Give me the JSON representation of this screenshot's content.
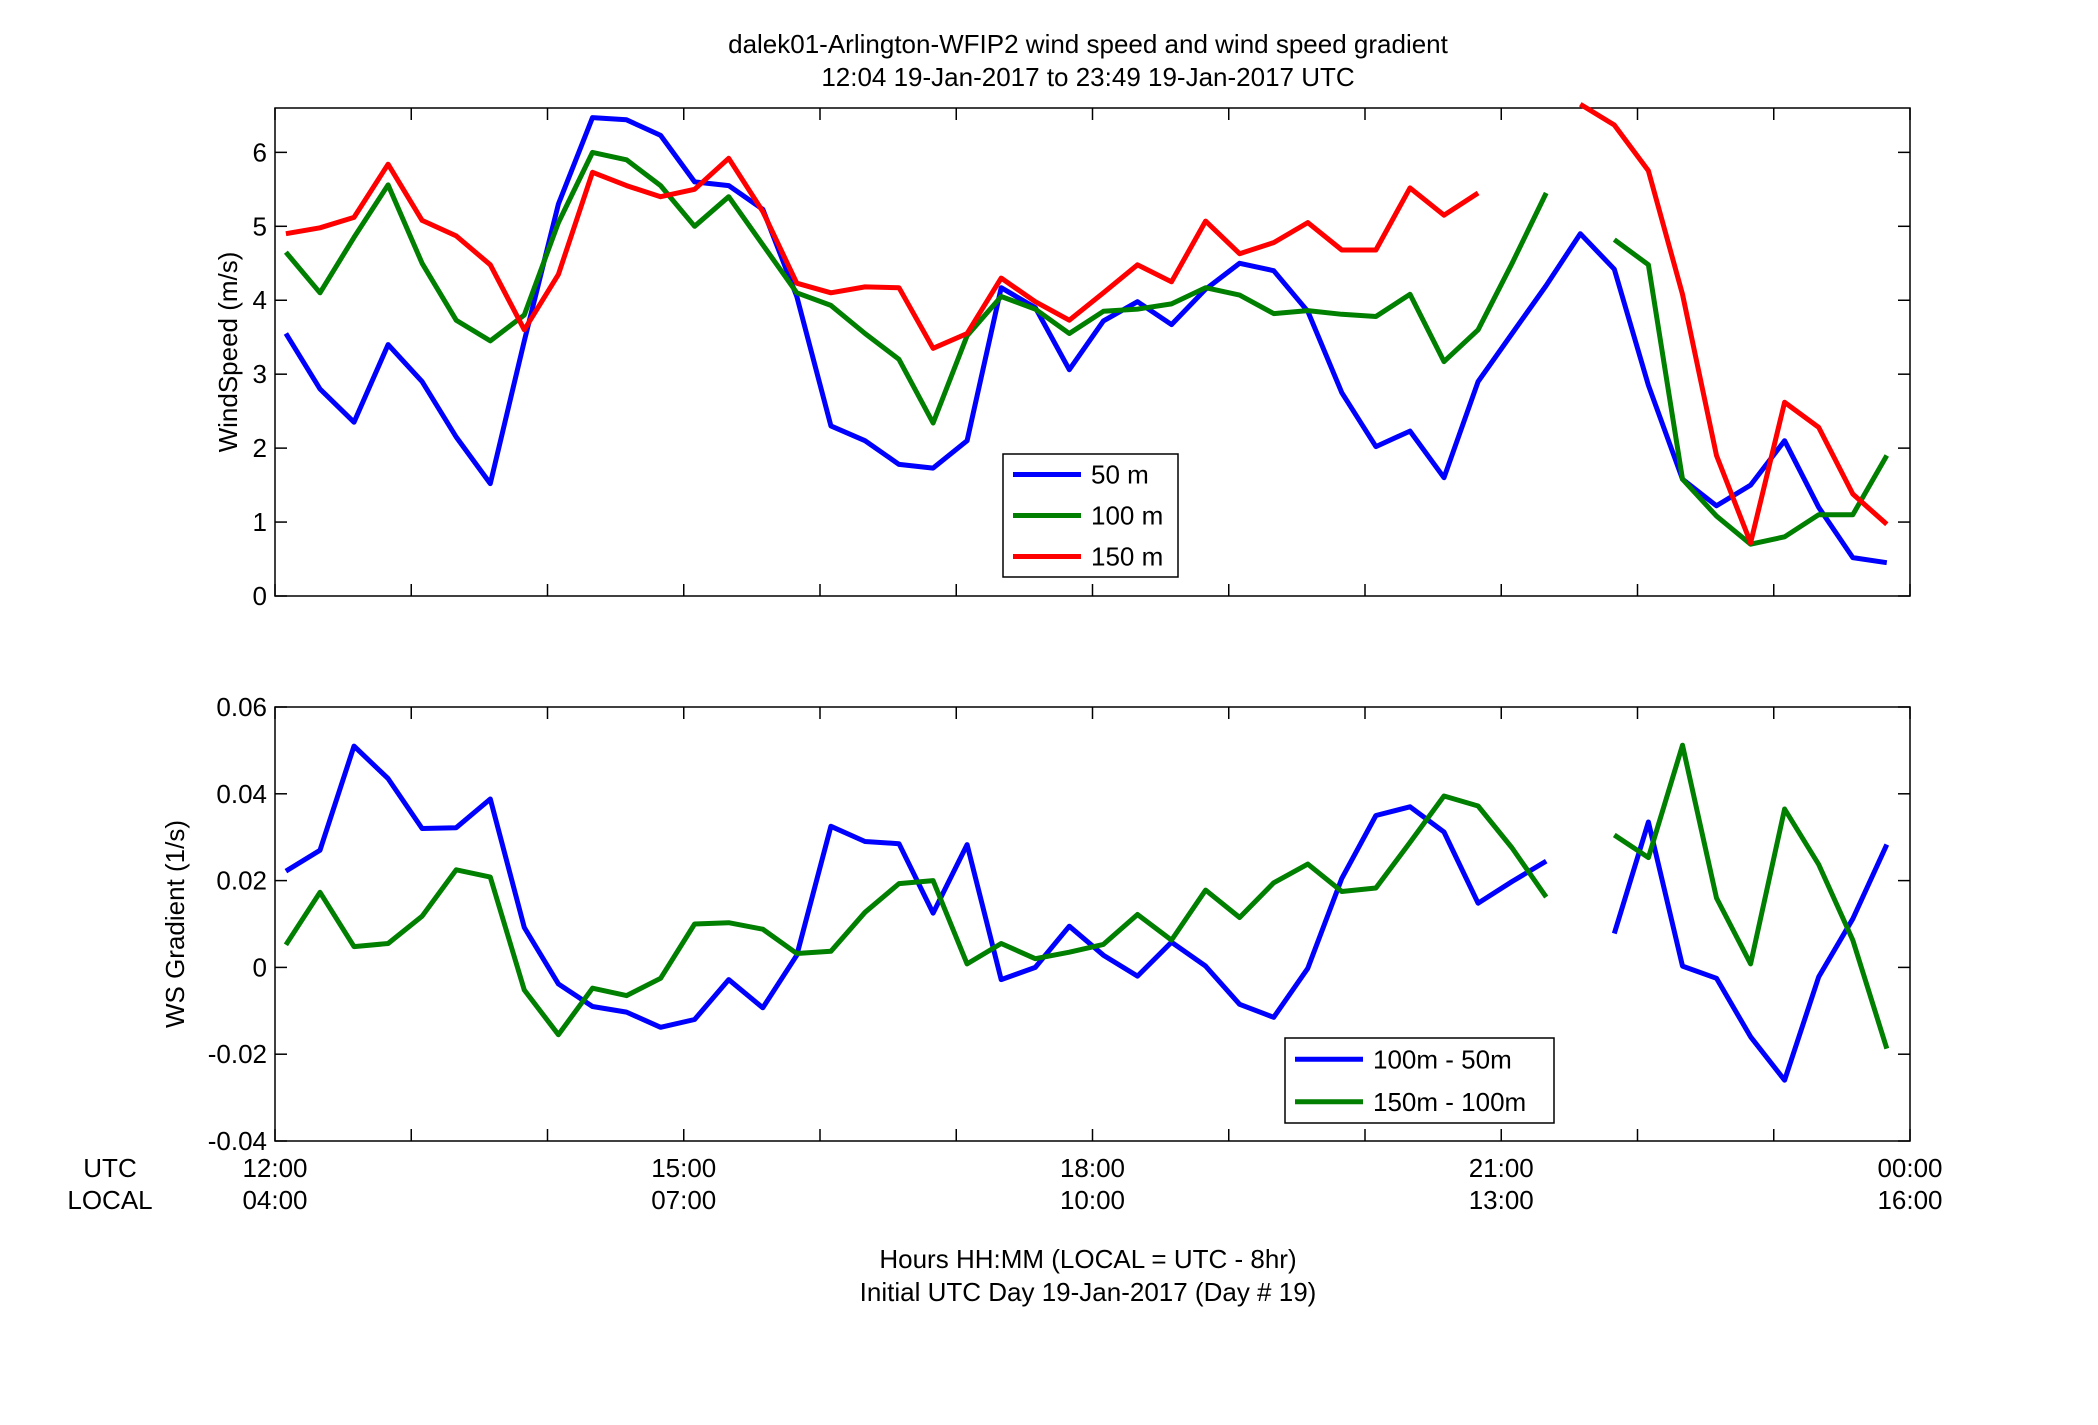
{
  "title_line1": "dalek01-Arlington-WFIP2  wind speed and wind speed gradient",
  "title_line2": "12:04 19-Jan-2017 to 23:49 19-Jan-2017  UTC",
  "xaxis": {
    "row1_label": "UTC",
    "row2_label": "LOCAL",
    "utc_ticks": [
      "12:00",
      "15:00",
      "18:00",
      "21:00",
      "00:00"
    ],
    "local_ticks": [
      "04:00",
      "07:00",
      "10:00",
      "13:00",
      "16:00"
    ],
    "xlabel_line1": "Hours HH:MM  (LOCAL = UTC - 8hr)",
    "xlabel_line2": "Initial UTC Day 19-Jan-2017 (Day # 19)"
  },
  "colors": {
    "blue": "#0000ff",
    "green": "#007f00",
    "red": "#ff0000"
  },
  "chart_data": [
    {
      "type": "line",
      "ylabel": "WindSpeed (m/s)",
      "ylim": [
        0,
        6.6
      ],
      "yticks": [
        0,
        1,
        2,
        3,
        4,
        5,
        6
      ],
      "xlim": [
        12,
        24
      ],
      "x": [
        12.08,
        12.33,
        12.58,
        12.83,
        13.08,
        13.33,
        13.58,
        13.83,
        14.08,
        14.33,
        14.58,
        14.83,
        15.08,
        15.33,
        15.58,
        15.83,
        16.08,
        16.33,
        16.58,
        16.83,
        17.08,
        17.33,
        17.58,
        17.83,
        18.08,
        18.33,
        18.58,
        18.83,
        19.08,
        19.33,
        19.58,
        19.83,
        20.08,
        20.33,
        20.58,
        20.83,
        21.08,
        21.33,
        21.58,
        21.83,
        22.08,
        22.33,
        22.58,
        22.83,
        23.08,
        23.33,
        23.58,
        23.83
      ],
      "series": [
        {
          "name": "50 m",
          "color": "#0000ff",
          "values": [
            3.55,
            2.8,
            2.35,
            3.4,
            2.9,
            2.15,
            1.52,
            3.45,
            5.3,
            6.47,
            6.44,
            6.23,
            5.6,
            5.55,
            5.23,
            4.05,
            2.3,
            2.1,
            1.78,
            1.73,
            2.1,
            4.17,
            3.9,
            3.06,
            3.72,
            3.98,
            3.67,
            4.15,
            4.5,
            4.4,
            3.85,
            2.75,
            2.02,
            2.23,
            1.6,
            2.9,
            3.55,
            4.2,
            4.9,
            4.42,
            2.85,
            1.58,
            1.22,
            1.5,
            2.1,
            1.2,
            0.52,
            0.45
          ]
        },
        {
          "name": "100 m",
          "color": "#007f00",
          "values": [
            4.65,
            4.1,
            4.85,
            5.56,
            4.5,
            3.73,
            3.45,
            3.8,
            5.05,
            6.0,
            5.9,
            5.55,
            5.0,
            5.4,
            4.75,
            4.1,
            3.93,
            3.55,
            3.2,
            2.34,
            3.52,
            4.05,
            3.88,
            3.55,
            3.85,
            3.88,
            3.95,
            4.17,
            4.07,
            3.82,
            3.86,
            3.81,
            3.78,
            4.08,
            3.17,
            3.6,
            4.5,
            5.45,
            null,
            4.82,
            4.48,
            1.58,
            1.08,
            0.7,
            0.8,
            1.1,
            1.1,
            1.9
          ]
        },
        {
          "name": "150 m",
          "color": "#ff0000",
          "values": [
            4.9,
            4.98,
            5.12,
            5.84,
            5.08,
            4.87,
            4.48,
            3.6,
            4.35,
            5.73,
            5.55,
            5.4,
            5.5,
            5.92,
            5.2,
            4.23,
            4.1,
            4.18,
            4.17,
            3.35,
            3.55,
            4.3,
            3.98,
            3.73,
            4.1,
            4.48,
            4.25,
            5.07,
            4.63,
            4.78,
            5.05,
            4.68,
            4.68,
            5.52,
            5.15,
            5.45,
            null,
            null,
            6.65,
            6.37,
            5.75,
            4.08,
            1.9,
            0.72,
            2.62,
            2.28,
            1.38,
            0.97
          ]
        }
      ]
    },
    {
      "type": "line",
      "ylabel": "WS Gradient (1/s)",
      "ylim": [
        -0.04,
        0.06
      ],
      "yticks": [
        -0.04,
        -0.02,
        0,
        0.02,
        0.04,
        0.06
      ],
      "ytick_labels": [
        "-0.04",
        "-0.02",
        "0",
        "0.02",
        "0.04",
        "0.06"
      ],
      "xlim": [
        12,
        24
      ],
      "x": [
        12.08,
        12.33,
        12.58,
        12.83,
        13.08,
        13.33,
        13.58,
        13.83,
        14.08,
        14.33,
        14.58,
        14.83,
        15.08,
        15.33,
        15.58,
        15.83,
        16.08,
        16.33,
        16.58,
        16.83,
        17.08,
        17.33,
        17.58,
        17.83,
        18.08,
        18.33,
        18.58,
        18.83,
        19.08,
        19.33,
        19.58,
        19.83,
        20.08,
        20.33,
        20.58,
        20.83,
        21.08,
        21.33,
        21.58,
        21.83,
        22.08,
        22.33,
        22.58,
        22.83,
        23.08,
        23.33,
        23.58,
        23.83
      ],
      "series": [
        {
          "name": "100m - 50m",
          "color": "#0000ff",
          "values": [
            0.0222,
            0.027,
            0.051,
            0.0435,
            0.032,
            0.0322,
            0.0388,
            0.0092,
            -0.0038,
            -0.009,
            -0.0103,
            -0.0138,
            -0.012,
            -0.0028,
            -0.0093,
            0.0028,
            0.0325,
            0.029,
            0.0285,
            0.0125,
            0.0283,
            -0.0028,
            0.0,
            0.0095,
            0.0028,
            -0.002,
            0.0058,
            0.0003,
            -0.0085,
            -0.0115,
            -0.0002,
            0.0205,
            0.035,
            0.037,
            0.0312,
            0.0148,
            0.0198,
            0.0245,
            null,
            0.0078,
            0.0335,
            0.0003,
            -0.0025,
            -0.016,
            -0.026,
            -0.0022,
            0.0112,
            0.0283
          ]
        },
        {
          "name": "150m - 100m",
          "color": "#007f00",
          "values": [
            0.0052,
            0.0173,
            0.0048,
            0.0055,
            0.0118,
            0.0225,
            0.0208,
            -0.0052,
            -0.0155,
            -0.0048,
            -0.0065,
            -0.0025,
            0.01,
            0.0103,
            0.0088,
            0.0032,
            0.0037,
            0.0127,
            0.0193,
            0.02,
            0.0008,
            0.0055,
            0.002,
            0.0035,
            0.0053,
            0.0122,
            0.0063,
            0.0178,
            0.0115,
            0.0195,
            0.0238,
            0.0175,
            0.0183,
            0.0288,
            0.0395,
            0.0372,
            0.0275,
            0.0162,
            null,
            0.0305,
            0.0253,
            0.0512,
            0.016,
            0.0008,
            0.0365,
            0.0237,
            0.0063,
            -0.0187
          ]
        }
      ]
    }
  ]
}
